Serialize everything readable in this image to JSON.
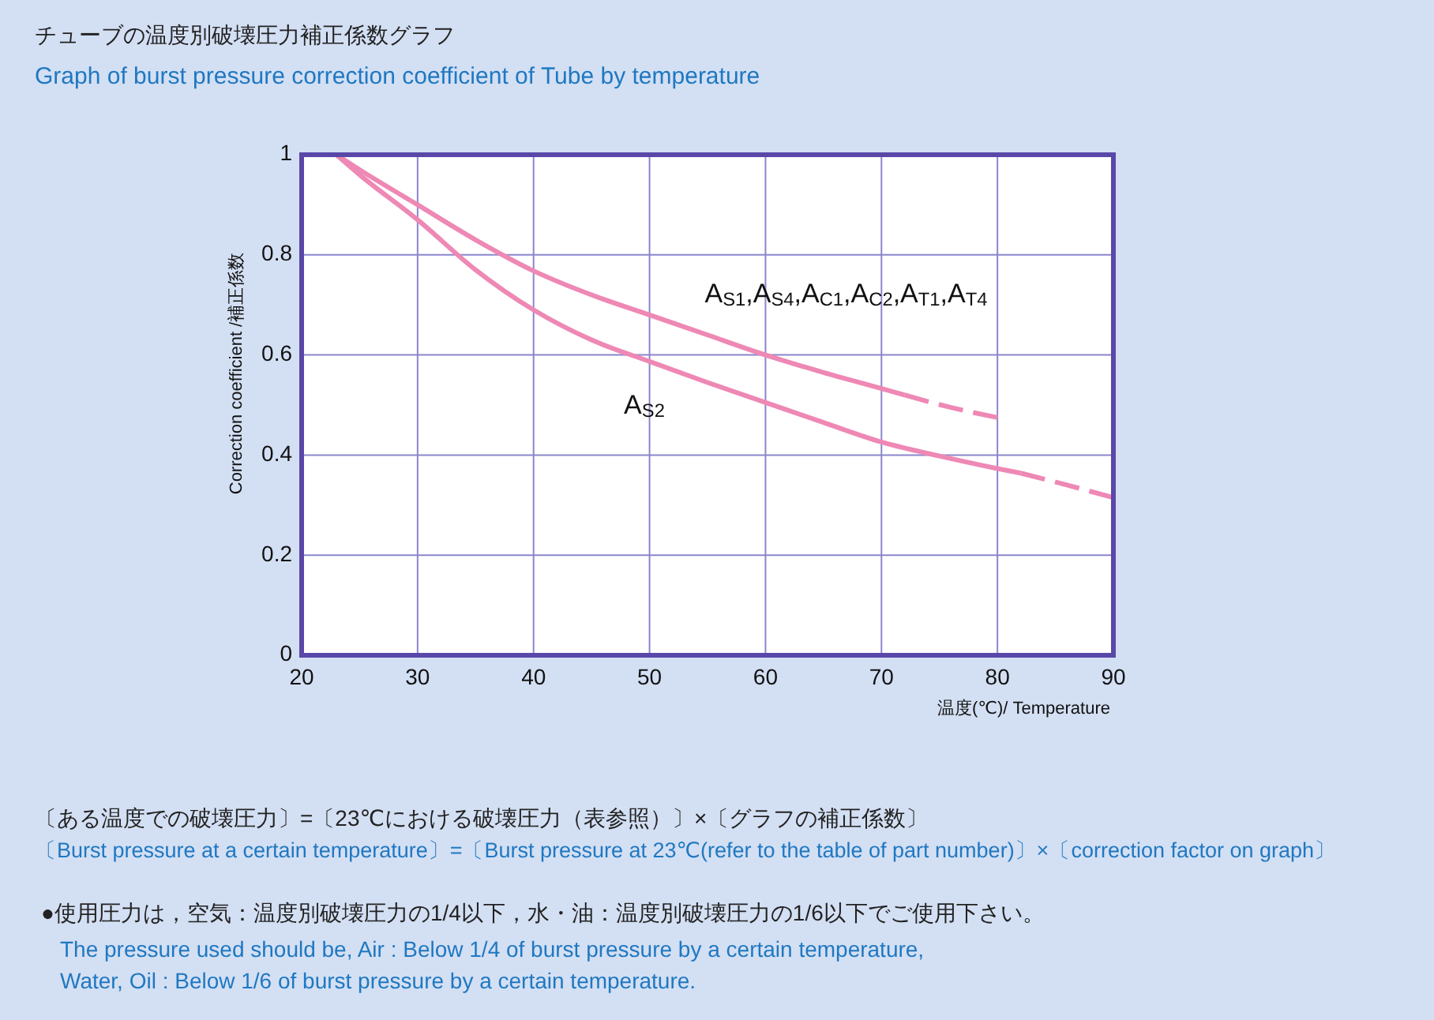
{
  "chart_data": {
    "type": "line",
    "title": "チューブの温度別破壊圧力補正係数グラフ",
    "subtitle": "Graph of burst pressure correction coefficient of Tube by temperature",
    "xlabel": "温度(℃)/ Temperature",
    "ylabel": "Correction coefficient /補正係数",
    "xlim": [
      20,
      90
    ],
    "ylim": [
      0,
      1
    ],
    "xticks": [
      20,
      30,
      40,
      50,
      60,
      70,
      80,
      90
    ],
    "yticks": [
      0,
      0.2,
      0.4,
      0.6,
      0.8,
      1
    ],
    "grid": true,
    "marker": "none",
    "series": [
      {
        "name": "A$_{S1}$,A$_{S4}$,A$_{C1}$,A$_{C2}$,A$_{T1}$,A$_{T4}$",
        "color": "#ee88b4",
        "line_style": "solid",
        "x": [
          23,
          25,
          30,
          35,
          40,
          45,
          50,
          55,
          60,
          65,
          70,
          72
        ],
        "values": [
          1,
          0.97,
          0.9,
          0.83,
          0.768,
          0.72,
          0.68,
          0.64,
          0.6,
          0.565,
          0.533,
          0.52
        ]
      },
      {
        "color": "#ee88b4",
        "line_style": "dashed",
        "x": [
          72,
          76,
          80
        ],
        "values": [
          0.52,
          0.495,
          0.475
        ]
      },
      {
        "name": "A$_{S2}$",
        "color": "#ee88b4",
        "line_style": "solid",
        "x": [
          23,
          25,
          30,
          35,
          40,
          45,
          50,
          55,
          60,
          65,
          70,
          75,
          80,
          82
        ],
        "values": [
          1,
          0.96,
          0.87,
          0.77,
          0.69,
          0.63,
          0.587,
          0.545,
          0.505,
          0.465,
          0.426,
          0.398,
          0.373,
          0.364
        ]
      },
      {
        "color": "#ee88b4",
        "line_style": "dashed",
        "x": [
          82,
          86,
          90
        ],
        "values": [
          0.364,
          0.34,
          0.315
        ]
      }
    ],
    "annotations": [
      "〔ある温度での破壊圧力〕=〔23℃における破壊圧力（表参照）〕×〔グラフの補正係数〕",
      "〔Burst pressure at a certain temperature〕=〔Burst pressure at 23℃(refer to the table of part number)〕×〔correction factor on graph〕",
      "●使用圧力は，空気：温度別破壊圧力の1/4以下，水・油：温度別破壊圧力の1/6以下でご使用下さい。",
      "The pressure used should be, Air : Below 1/4 of burst pressure by a certain temperature,",
      "Water, Oil : Below 1/6 of burst pressure by a certain temperature."
    ]
  }
}
